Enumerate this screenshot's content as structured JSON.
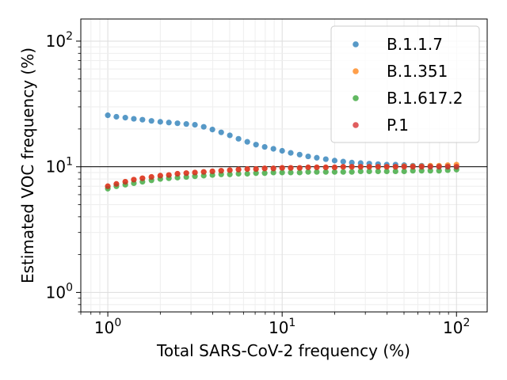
{
  "chart_data": {
    "type": "scatter",
    "xlabel": "Total SARS-CoV-2 frequency (%)",
    "ylabel": "Estimated VOC frequency (%)",
    "xscale": "log",
    "yscale": "log",
    "xlim": [
      0.7,
      150
    ],
    "ylim": [
      0.7,
      150
    ],
    "x_ticks": [
      {
        "base": "10",
        "exp": "0"
      },
      {
        "base": "10",
        "exp": "1"
      },
      {
        "base": "10",
        "exp": "2"
      }
    ],
    "y_ticks": [
      {
        "base": "10",
        "exp": "0"
      },
      {
        "base": "10",
        "exp": "1"
      },
      {
        "base": "10",
        "exp": "2"
      }
    ],
    "grid": true,
    "legend_position": "top-right",
    "reference_line": {
      "y": 10,
      "color": "#000000"
    },
    "x": [
      1.0,
      1.12,
      1.26,
      1.41,
      1.58,
      1.78,
      2.0,
      2.24,
      2.51,
      2.82,
      3.16,
      3.55,
      3.98,
      4.47,
      5.01,
      5.62,
      6.31,
      7.08,
      7.94,
      8.91,
      10.0,
      11.2,
      12.6,
      14.1,
      15.8,
      17.8,
      20.0,
      22.4,
      25.1,
      28.2,
      31.6,
      35.5,
      39.8,
      44.7,
      50.1,
      56.2,
      63.1,
      70.8,
      79.4,
      89.1,
      100.0
    ],
    "series": [
      {
        "name": "B.1.1.7",
        "color": "#1f77b4",
        "values": [
          25.7,
          25.0,
          24.6,
          24.1,
          23.7,
          23.2,
          22.8,
          22.5,
          22.2,
          21.9,
          21.6,
          20.8,
          19.8,
          18.8,
          17.8,
          16.7,
          15.8,
          15.0,
          14.4,
          13.9,
          13.4,
          12.9,
          12.5,
          12.1,
          11.8,
          11.5,
          11.2,
          11.0,
          10.8,
          10.7,
          10.6,
          10.5,
          10.4,
          10.4,
          10.3,
          10.2,
          10.2,
          10.1,
          10.1,
          10.1,
          10.0
        ]
      },
      {
        "name": "B.1.351",
        "color": "#ff7f0e",
        "values": [
          7.0,
          7.3,
          7.6,
          7.9,
          8.1,
          8.3,
          8.5,
          8.6,
          8.8,
          8.9,
          9.0,
          9.1,
          9.2,
          9.3,
          9.4,
          9.5,
          9.6,
          9.6,
          9.7,
          9.7,
          9.8,
          9.8,
          9.8,
          9.9,
          9.9,
          9.9,
          9.9,
          10.0,
          10.0,
          10.0,
          10.0,
          10.0,
          10.0,
          10.0,
          10.1,
          10.1,
          10.1,
          10.2,
          10.2,
          10.3,
          10.4
        ]
      },
      {
        "name": "B.1.617.2",
        "color": "#2ca02c",
        "values": [
          6.7,
          7.0,
          7.2,
          7.4,
          7.6,
          7.8,
          8.0,
          8.1,
          8.2,
          8.3,
          8.4,
          8.5,
          8.6,
          8.7,
          8.7,
          8.8,
          8.8,
          8.9,
          8.9,
          9.0,
          9.0,
          9.0,
          9.0,
          9.1,
          9.1,
          9.1,
          9.1,
          9.1,
          9.1,
          9.2,
          9.2,
          9.2,
          9.2,
          9.2,
          9.2,
          9.3,
          9.3,
          9.3,
          9.3,
          9.4,
          9.5
        ]
      },
      {
        "name": "P.1",
        "color": "#d62728",
        "values": [
          7.0,
          7.3,
          7.6,
          7.9,
          8.1,
          8.3,
          8.5,
          8.6,
          8.8,
          8.9,
          9.0,
          9.1,
          9.2,
          9.3,
          9.4,
          9.5,
          9.6,
          9.6,
          9.7,
          9.7,
          9.8,
          9.8,
          9.8,
          9.9,
          9.9,
          9.9,
          9.9,
          10.0,
          10.0,
          10.0,
          10.0,
          10.0,
          10.0,
          10.0,
          10.0,
          10.0,
          10.0,
          10.0,
          10.0,
          10.0,
          10.0
        ]
      }
    ]
  }
}
